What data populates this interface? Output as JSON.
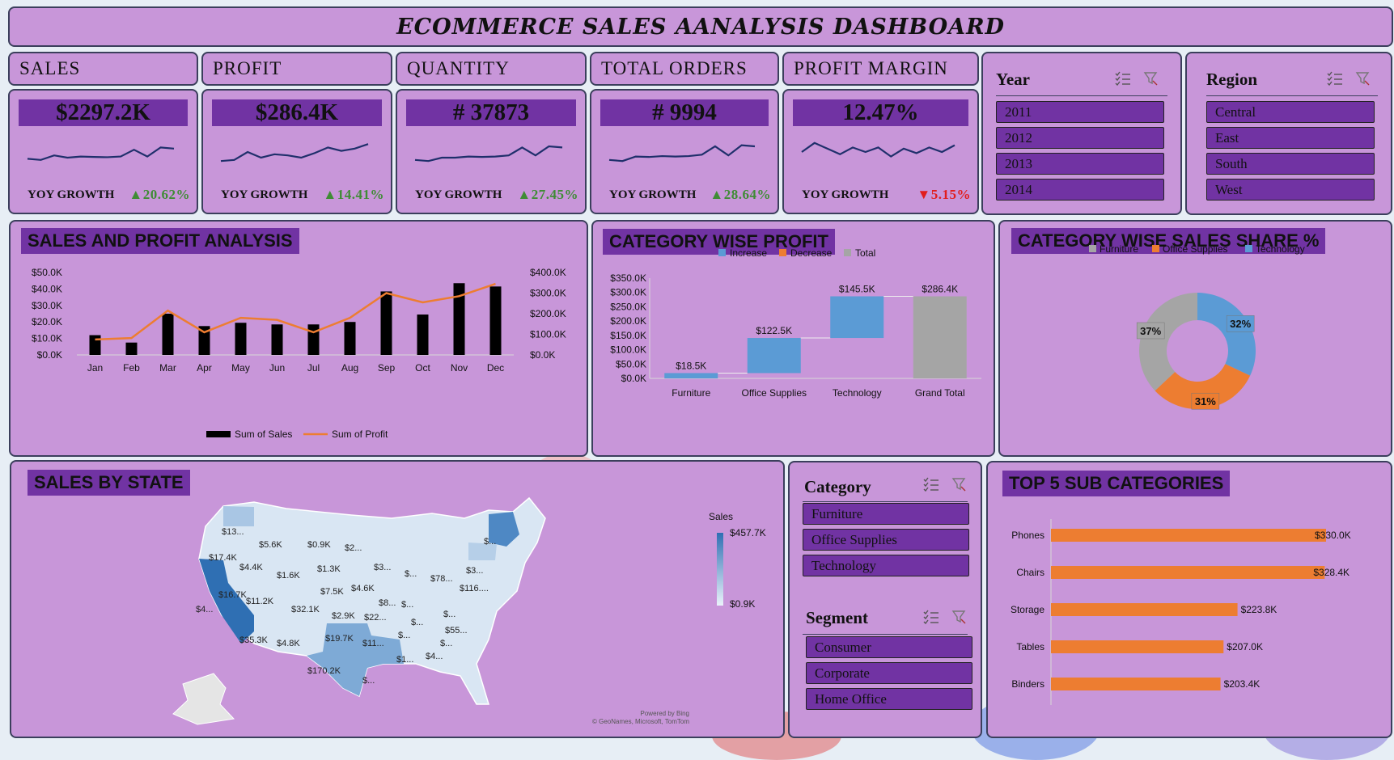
{
  "title": "ECOMMERCE SALES AANALYSIS DASHBOARD",
  "kpis": [
    {
      "label": "SALES",
      "value": "$2297.2K",
      "yoy_label": "YOY GROWTH",
      "yoy": "▲20.62%",
      "trend": "up",
      "spark": [
        0.2,
        0.15,
        0.35,
        0.25,
        0.3,
        0.28,
        0.27,
        0.3,
        0.6,
        0.3,
        0.7,
        0.65
      ]
    },
    {
      "label": "PROFIT",
      "value": "$286.4K",
      "yoy_label": "YOY GROWTH",
      "yoy": "▲14.41%",
      "trend": "up",
      "spark": [
        0.1,
        0.15,
        0.5,
        0.25,
        0.4,
        0.35,
        0.25,
        0.45,
        0.7,
        0.55,
        0.65,
        0.85
      ]
    },
    {
      "label": "QUANTITY",
      "value": "# 37873",
      "yoy_label": "YOY GROWTH",
      "yoy": "▲27.45%",
      "trend": "up",
      "spark": [
        0.15,
        0.1,
        0.25,
        0.25,
        0.3,
        0.28,
        0.3,
        0.35,
        0.7,
        0.35,
        0.75,
        0.7
      ]
    },
    {
      "label": "TOTAL ORDERS",
      "value": "# 9994",
      "yoy_label": "YOY GROWTH",
      "yoy": "▲28.64%",
      "trend": "up",
      "spark": [
        0.15,
        0.1,
        0.3,
        0.28,
        0.32,
        0.3,
        0.32,
        0.38,
        0.75,
        0.35,
        0.8,
        0.75
      ]
    },
    {
      "label": "PROFIT MARGIN",
      "value": "12.47%",
      "yoy_label": "YOY GROWTH",
      "yoy": "▼5.15%",
      "trend": "down",
      "spark": [
        0.5,
        0.9,
        0.65,
        0.4,
        0.7,
        0.5,
        0.7,
        0.3,
        0.65,
        0.45,
        0.7,
        0.5,
        0.8
      ]
    }
  ],
  "slicers": {
    "year": {
      "title": "Year",
      "items": [
        "2011",
        "2012",
        "2013",
        "2014"
      ]
    },
    "region": {
      "title": "Region",
      "items": [
        "Central",
        "East",
        "South",
        "West"
      ]
    },
    "category": {
      "title": "Category",
      "items": [
        "Furniture",
        "Office Supplies",
        "Technology"
      ]
    },
    "segment": {
      "title": "Segment",
      "items": [
        "Consumer",
        "Corporate",
        "Home Office"
      ]
    }
  },
  "icons": {
    "multi_select": "multi-select-icon",
    "clear_filter": "clear-filter-icon"
  },
  "colors": {
    "panel": "#c896d9",
    "accent": "#7133a3",
    "bar_black": "#000000",
    "profit_line": "#ed7d31",
    "increase": "#5b9bd5",
    "decrease": "#ed7d31",
    "total": "#a5a5a5",
    "up": "#3f8c35",
    "down": "#e11d1d"
  },
  "sections": {
    "sales_profit": "SALES AND PROFIT ANALYSIS",
    "category_profit": "CATEGORY WISE PROFIT",
    "category_share": "CATEGORY WISE SALES SHARE %",
    "sales_state": "SALES BY STATE",
    "top5": "TOP 5 SUB CATEGORIES"
  },
  "chart_data": [
    {
      "type": "bar",
      "title": "SALES AND PROFIT ANALYSIS",
      "categories": [
        "Jan",
        "Feb",
        "Mar",
        "Apr",
        "May",
        "Jun",
        "Jul",
        "Aug",
        "Sep",
        "Oct",
        "Nov",
        "Dec"
      ],
      "series": [
        {
          "name": "Sum of Sales",
          "axis": "left",
          "type": "bar",
          "values": [
            12000,
            7500,
            25000,
            17500,
            19500,
            18500,
            18500,
            20000,
            38500,
            24500,
            43500,
            41500
          ]
        },
        {
          "name": "Sum of Profit",
          "axis": "right",
          "type": "line",
          "values": [
            75000,
            82000,
            215000,
            110000,
            180000,
            170000,
            110000,
            180000,
            300000,
            255000,
            285000,
            345000
          ]
        }
      ],
      "y_left": {
        "ticks": [
          "$0.0K",
          "$10.0K",
          "$20.0K",
          "$30.0K",
          "$40.0K",
          "$50.0K"
        ],
        "ylim": [
          0,
          50000
        ]
      },
      "y_right": {
        "ticks": [
          "$0.0K",
          "$100.0K",
          "$200.0K",
          "$300.0K",
          "$400.0K"
        ],
        "ylim": [
          0,
          400000
        ]
      },
      "legend": "bottom"
    },
    {
      "type": "bar",
      "subtype": "waterfall",
      "title": "CATEGORY WISE PROFIT",
      "categories": [
        "Furniture",
        "Office Supplies",
        "Technology",
        "Grand Total"
      ],
      "values": [
        18500,
        122500,
        145500,
        286400
      ],
      "labels": [
        "$18.5K",
        "$122.5K",
        "$145.5K",
        "$286.4K"
      ],
      "kinds": [
        "Increase",
        "Increase",
        "Increase",
        "Total"
      ],
      "legend_entries": [
        "Increase",
        "Decrease",
        "Total"
      ],
      "y_ticks": [
        "$0.0K",
        "$50.0K",
        "$100.0K",
        "$150.0K",
        "$200.0K",
        "$250.0K",
        "$300.0K",
        "$350.0K"
      ],
      "ylim": [
        0,
        350000
      ],
      "legend": "top"
    },
    {
      "type": "pie",
      "subtype": "donut",
      "title": "CATEGORY WISE SALES SHARE %",
      "categories": [
        "Technology",
        "Office Supplies",
        "Furniture"
      ],
      "values": [
        32,
        31,
        37
      ],
      "labels": [
        "32%",
        "31%",
        "37%"
      ],
      "legend_entries": [
        "Furniture",
        "Office Supplies",
        "Technology"
      ],
      "colors": [
        "#5b9bd5",
        "#ed7d31",
        "#a5a5a5"
      ],
      "legend": "top"
    },
    {
      "type": "bar",
      "orientation": "horizontal",
      "title": "TOP 5 SUB CATEGORIES",
      "categories": [
        "Phones",
        "Chairs",
        "Storage",
        "Tables",
        "Binders"
      ],
      "values": [
        330000,
        328400,
        223800,
        207000,
        203400
      ],
      "labels": [
        "$330.0K",
        "$328.4K",
        "$223.8K",
        "$207.0K",
        "$203.4K"
      ]
    }
  ],
  "map": {
    "legend_title": "Sales",
    "legend_max": "$457.7K",
    "legend_min": "$0.9K",
    "credit_1": "Powered by Bing",
    "credit_2": "© GeoNames, Microsoft, TomTom",
    "labels": [
      "$13...",
      "$5.6K",
      "$0.9K",
      "$2...",
      "$...",
      "$17.4K",
      "$4.4K",
      "$1.6K",
      "$1.3K",
      "$3...",
      "$...",
      "$3...",
      "$78...",
      "$116....",
      "$16.7K",
      "$11.2K",
      "$32.1K",
      "$7.5K",
      "$4.6K",
      "$8...",
      "$...",
      "$4...",
      "$2.9K",
      "$22...",
      "$...",
      "$...",
      "$55...",
      "$35.3K",
      "$4.8K",
      "$19.7K",
      "$11...",
      "$...",
      "$1...",
      "$4...",
      "$...",
      "$170.2K",
      "$..."
    ]
  }
}
